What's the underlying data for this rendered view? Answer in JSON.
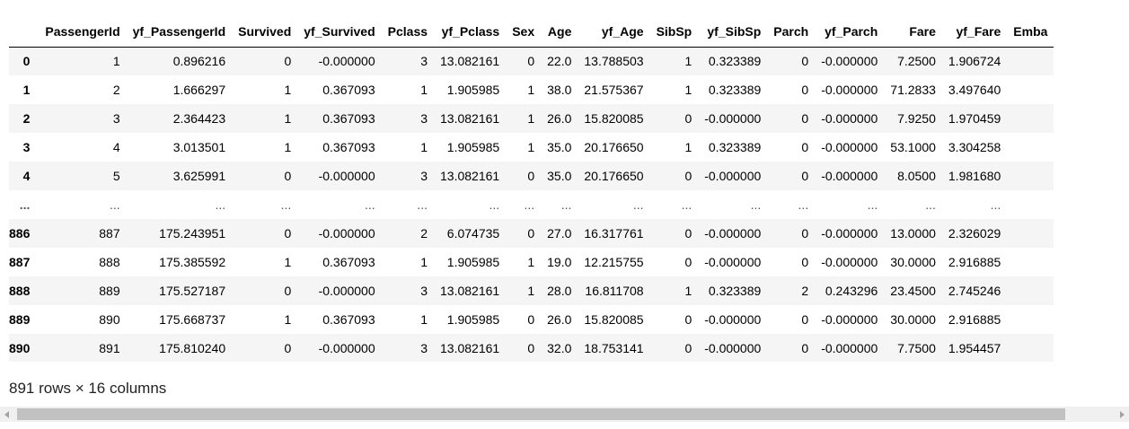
{
  "table": {
    "index_header": "",
    "columns": [
      "PassengerId",
      "yf_PassengerId",
      "Survived",
      "yf_Survived",
      "Pclass",
      "yf_Pclass",
      "Sex",
      "Age",
      "yf_Age",
      "SibSp",
      "yf_SibSp",
      "Parch",
      "yf_Parch",
      "Fare",
      "yf_Fare",
      "Emba"
    ],
    "rows": [
      {
        "index": "0",
        "cells": [
          "1",
          "0.896216",
          "0",
          "-0.000000",
          "3",
          "13.082161",
          "0",
          "22.0",
          "13.788503",
          "1",
          "0.323389",
          "0",
          "-0.000000",
          "7.2500",
          "1.906724",
          ""
        ]
      },
      {
        "index": "1",
        "cells": [
          "2",
          "1.666297",
          "1",
          "0.367093",
          "1",
          "1.905985",
          "1",
          "38.0",
          "21.575367",
          "1",
          "0.323389",
          "0",
          "-0.000000",
          "71.2833",
          "3.497640",
          ""
        ]
      },
      {
        "index": "2",
        "cells": [
          "3",
          "2.364423",
          "1",
          "0.367093",
          "3",
          "13.082161",
          "1",
          "26.0",
          "15.820085",
          "0",
          "-0.000000",
          "0",
          "-0.000000",
          "7.9250",
          "1.970459",
          ""
        ]
      },
      {
        "index": "3",
        "cells": [
          "4",
          "3.013501",
          "1",
          "0.367093",
          "1",
          "1.905985",
          "1",
          "35.0",
          "20.176650",
          "1",
          "0.323389",
          "0",
          "-0.000000",
          "53.1000",
          "3.304258",
          ""
        ]
      },
      {
        "index": "4",
        "cells": [
          "5",
          "3.625991",
          "0",
          "-0.000000",
          "3",
          "13.082161",
          "0",
          "35.0",
          "20.176650",
          "0",
          "-0.000000",
          "0",
          "-0.000000",
          "8.0500",
          "1.981680",
          ""
        ]
      },
      {
        "index": "...",
        "ellipsis": true,
        "cells": [
          "...",
          "...",
          "...",
          "...",
          "...",
          "...",
          "...",
          "...",
          "...",
          "...",
          "...",
          "...",
          "...",
          "...",
          "...",
          ""
        ]
      },
      {
        "index": "886",
        "cells": [
          "887",
          "175.243951",
          "0",
          "-0.000000",
          "2",
          "6.074735",
          "0",
          "27.0",
          "16.317761",
          "0",
          "-0.000000",
          "0",
          "-0.000000",
          "13.0000",
          "2.326029",
          ""
        ]
      },
      {
        "index": "887",
        "cells": [
          "888",
          "175.385592",
          "1",
          "0.367093",
          "1",
          "1.905985",
          "1",
          "19.0",
          "12.215755",
          "0",
          "-0.000000",
          "0",
          "-0.000000",
          "30.0000",
          "2.916885",
          ""
        ]
      },
      {
        "index": "888",
        "cells": [
          "889",
          "175.527187",
          "0",
          "-0.000000",
          "3",
          "13.082161",
          "1",
          "28.0",
          "16.811708",
          "1",
          "0.323389",
          "2",
          "0.243296",
          "23.4500",
          "2.745246",
          ""
        ]
      },
      {
        "index": "889",
        "cells": [
          "890",
          "175.668737",
          "1",
          "0.367093",
          "1",
          "1.905985",
          "0",
          "26.0",
          "15.820085",
          "0",
          "-0.000000",
          "0",
          "-0.000000",
          "30.0000",
          "2.916885",
          ""
        ]
      },
      {
        "index": "890",
        "cells": [
          "891",
          "175.810240",
          "0",
          "-0.000000",
          "3",
          "13.082161",
          "0",
          "32.0",
          "18.753141",
          "0",
          "-0.000000",
          "0",
          "-0.000000",
          "7.7500",
          "1.954457",
          ""
        ]
      }
    ]
  },
  "shape_text": "891 rows × 16 columns",
  "scrollbar": {
    "left_icon": "chevron-left-icon",
    "right_icon": "chevron-right-icon"
  },
  "colors": {
    "stripe": "#f5f5f5",
    "header_border": "#000000",
    "scroll_track": "#f0f0f0",
    "scroll_thumb": "#c1c1c1"
  }
}
